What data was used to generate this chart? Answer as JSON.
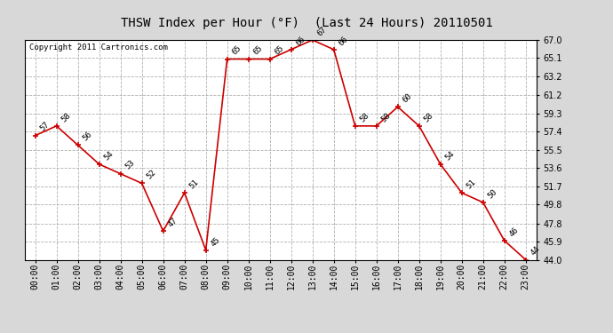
{
  "title": "THSW Index per Hour (°F)  (Last 24 Hours) 20110501",
  "copyright": "Copyright 2011 Cartronics.com",
  "hours": [
    "00:00",
    "01:00",
    "02:00",
    "03:00",
    "04:00",
    "05:00",
    "06:00",
    "07:00",
    "08:00",
    "09:00",
    "10:00",
    "11:00",
    "12:00",
    "13:00",
    "14:00",
    "15:00",
    "16:00",
    "17:00",
    "18:00",
    "19:00",
    "20:00",
    "21:00",
    "22:00",
    "23:00"
  ],
  "plot_data": {
    "x": [
      0,
      1,
      2,
      3,
      4,
      5,
      6,
      7,
      8,
      9,
      10,
      11,
      12,
      13,
      14,
      15,
      16,
      17,
      18,
      19,
      20,
      21,
      22,
      23
    ],
    "y": [
      57,
      58,
      56,
      54,
      53,
      52,
      47,
      51,
      45,
      65,
      65,
      65,
      66,
      67,
      66,
      58,
      58,
      60,
      58,
      54,
      51,
      50,
      46,
      44
    ]
  },
  "annotations": [
    [
      0,
      57,
      "57"
    ],
    [
      1,
      58,
      "58"
    ],
    [
      2,
      56,
      "56"
    ],
    [
      3,
      54,
      "54"
    ],
    [
      4,
      53,
      "53"
    ],
    [
      5,
      52,
      "52"
    ],
    [
      6,
      47,
      "47"
    ],
    [
      7,
      51,
      "51"
    ],
    [
      8,
      45,
      "45"
    ],
    [
      9,
      65,
      "65"
    ],
    [
      10,
      65,
      "65"
    ],
    [
      11,
      65,
      "65"
    ],
    [
      12,
      66,
      "66"
    ],
    [
      13,
      67,
      "67"
    ],
    [
      14,
      66,
      "66"
    ],
    [
      15,
      58,
      "58"
    ],
    [
      16,
      58,
      "58"
    ],
    [
      17,
      60,
      "60"
    ],
    [
      18,
      58,
      "58"
    ],
    [
      19,
      54,
      "54"
    ],
    [
      20,
      51,
      "51"
    ],
    [
      21,
      50,
      "50"
    ],
    [
      22,
      46,
      "46"
    ],
    [
      23,
      44,
      "44"
    ]
  ],
  "ylim": [
    44.0,
    67.0
  ],
  "yticks": [
    44.0,
    45.9,
    47.8,
    49.8,
    51.7,
    53.6,
    55.5,
    57.4,
    59.3,
    61.2,
    63.2,
    65.1,
    67.0
  ],
  "background_color": "#d8d8d8",
  "plot_bg_color": "#ffffff",
  "line_color": "#cc0000",
  "marker_color": "#cc0000",
  "grid_color": "#b0b0b0",
  "title_fontsize": 10,
  "copyright_fontsize": 6.5,
  "tick_fontsize": 7,
  "annotation_fontsize": 6.5
}
